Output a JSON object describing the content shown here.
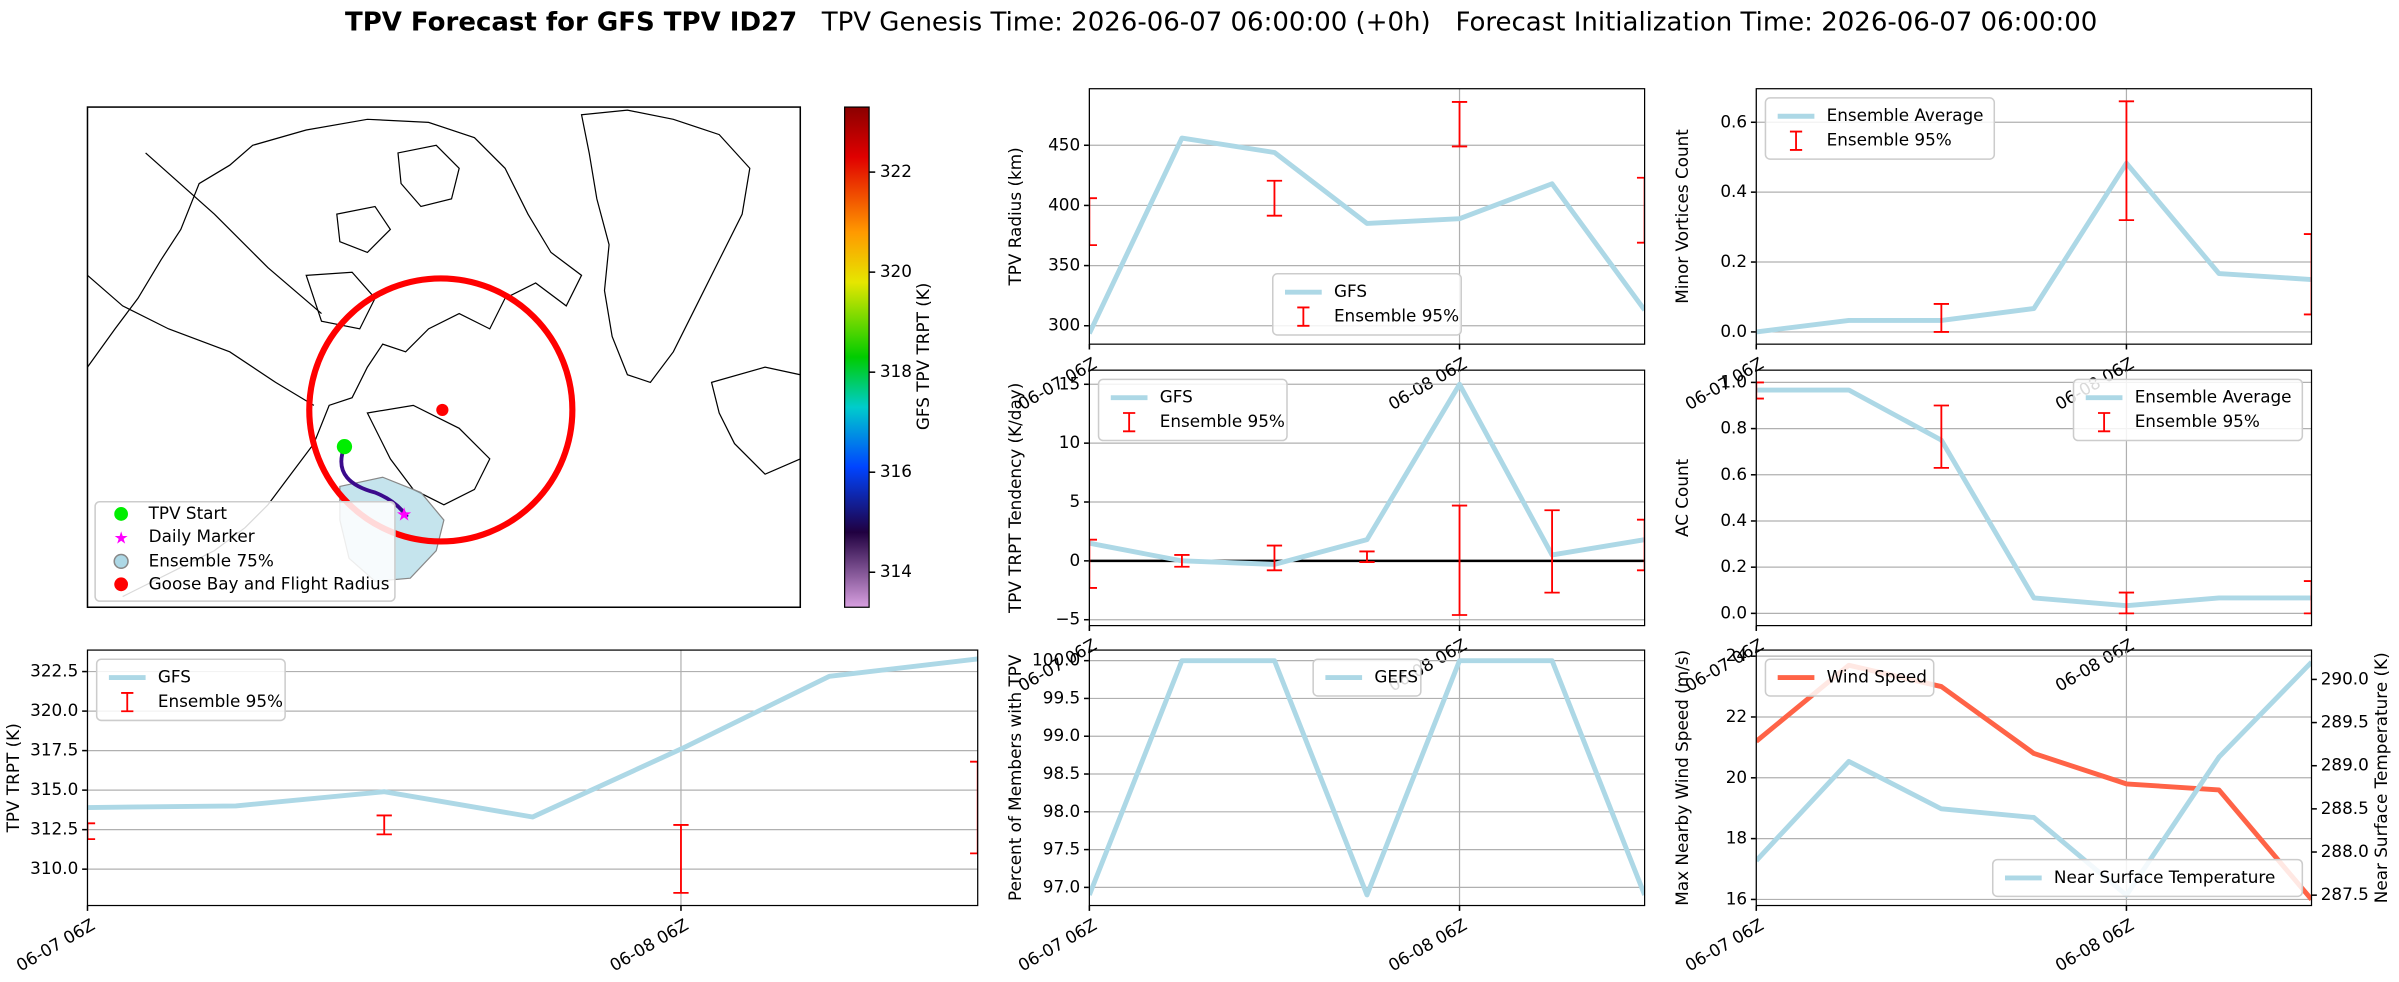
{
  "title": "TPV Forecast for GFS TPV ID27",
  "subtitle": "TPV Genesis Time: 2026-06-07 06:00:00 (+0h)   Forecast Initialization Time: 2026-06-07 06:00:00",
  "map": {
    "legend": [
      "TPV Start",
      "Daily Marker",
      "Ensemble 75%",
      "Goose Bay and Flight Radius"
    ],
    "colorbar": {
      "label": "GFS TPV TRPT (K)",
      "lim": [
        313.3,
        323.3
      ],
      "ticks": [
        314,
        316,
        318,
        320,
        322
      ]
    }
  },
  "chart_data": [
    {
      "type": "line",
      "ylabel": "TPV Radius (km)",
      "categories": [
        "06-07 06Z",
        null,
        null,
        null,
        "06-08 06Z",
        null,
        null
      ],
      "series": [
        {
          "name": "GFS",
          "color": "#add8e6",
          "values": [
            293.6,
            456,
            444,
            385,
            389,
            418,
            313
          ]
        },
        {
          "name": "Ensemble 95%",
          "color": "#ff0000",
          "values": [
            386.5,
            null,
            406,
            null,
            467.5,
            null,
            396
          ],
          "errors": [
            19.5,
            null,
            14.5,
            null,
            18.5,
            null,
            27
          ]
        }
      ],
      "ylim": [
        284.7,
        497
      ],
      "yticks": [
        300,
        350,
        400,
        450
      ],
      "grid": true,
      "legend": "lower center"
    },
    {
      "type": "line",
      "ylabel": "Minor Vortices Count",
      "categories": [
        "06-07 06Z",
        null,
        null,
        null,
        "06-08 06Z",
        null,
        null
      ],
      "series": [
        {
          "name": "Ensemble Average",
          "color": "#add8e6",
          "values": [
            0,
            0.033,
            0.033,
            0.067,
            0.483,
            0.167,
            0.15
          ]
        },
        {
          "name": "Ensemble 95%",
          "color": "#ff0000",
          "values": [
            null,
            null,
            0.04,
            null,
            0.49,
            null,
            0.165
          ],
          "errors": [
            null,
            null,
            0.04,
            null,
            0.17,
            null,
            0.115
          ]
        }
      ],
      "ylim": [
        -0.035,
        0.696
      ],
      "yticks": [
        {
          "value": 0,
          "label": "0.0"
        },
        0.2,
        0.4,
        0.6
      ],
      "grid": true,
      "legend": "upper left"
    },
    {
      "type": "line",
      "ylabel": "TPV TRPT Tendency (K/day)",
      "categories": [
        "06-07 06Z",
        null,
        null,
        null,
        "06-08 06Z",
        null,
        null
      ],
      "series": [
        {
          "name": "GFS",
          "color": "#add8e6",
          "values": [
            1.5,
            0,
            -0.3,
            1.8,
            15,
            0.5,
            1.8
          ]
        },
        {
          "name": "Ensemble 95%",
          "color": "#ff0000",
          "values": [
            -0.25,
            0,
            0.25,
            0.35,
            0.05,
            0.8,
            1.35
          ],
          "errors": [
            2.05,
            0.5,
            1.05,
            0.45,
            4.65,
            3.5,
            2.15
          ]
        }
      ],
      "ylim": [
        -5.5,
        16.2
      ],
      "yticks": [
        {
          "value": -5,
          "label": "−5"
        },
        0,
        5,
        10,
        15
      ],
      "grid": true,
      "legend": "upper left",
      "hline": 0
    },
    {
      "type": "line",
      "ylabel": "AC Count",
      "categories": [
        "06-07 06Z",
        null,
        null,
        null,
        "06-08 06Z",
        null,
        null
      ],
      "series": [
        {
          "name": "Ensemble Average",
          "color": "#add8e6",
          "values": [
            0.967,
            0.967,
            0.75,
            0.067,
            0.033,
            0.067,
            0.067
          ]
        },
        {
          "name": "Ensemble 95%",
          "color": "#ff0000",
          "values": [
            0.965,
            null,
            0.765,
            null,
            0.045,
            null,
            0.07
          ],
          "errors": [
            0.035,
            null,
            0.135,
            null,
            0.045,
            null,
            0.07
          ]
        }
      ],
      "ylim": [
        -0.053,
        1.053
      ],
      "yticks": [
        {
          "value": 0,
          "label": "0.0"
        },
        0.2,
        0.4,
        0.6,
        0.8,
        {
          "value": 1,
          "label": "1.0"
        }
      ],
      "grid": true,
      "legend": "upper right"
    },
    {
      "type": "line",
      "ylabel": "TPV TRPT (K)",
      "categories": [
        "06-07 06Z",
        null,
        null,
        null,
        "06-08 06Z",
        null,
        null
      ],
      "series": [
        {
          "name": "GFS",
          "color": "#add8e6",
          "values": [
            313.9,
            314.0,
            314.9,
            313.3,
            317.6,
            322.2,
            323.3
          ]
        },
        {
          "name": "Ensemble 95%",
          "color": "#ff0000",
          "values": [
            312.4,
            null,
            312.8,
            null,
            310.65,
            null,
            313.9
          ],
          "errors": [
            0.5,
            null,
            0.6,
            null,
            2.15,
            null,
            2.9
          ]
        }
      ],
      "ylim": [
        307.7,
        323.86
      ],
      "yticks": [
        {
          "value": 310,
          "label": "310.0"
        },
        312.5,
        {
          "value": 315,
          "label": "315.0"
        },
        317.5,
        {
          "value": 320,
          "label": "320.0"
        },
        322.5
      ],
      "grid": true,
      "legend": "upper left"
    },
    {
      "type": "line",
      "ylabel": "Percent of Members with TPV",
      "categories": [
        "06-07 06Z",
        null,
        null,
        null,
        "06-08 06Z",
        null,
        null
      ],
      "series": [
        {
          "name": "GEFS",
          "color": "#add8e6",
          "values": [
            96.9,
            100,
            100,
            96.9,
            100,
            100,
            96.9
          ]
        }
      ],
      "ylim": [
        96.76,
        100.14
      ],
      "yticks": [
        {
          "value": 97,
          "label": "97.0"
        },
        97.5,
        {
          "value": 98,
          "label": "98.0"
        },
        98.5,
        {
          "value": 99,
          "label": "99.0"
        },
        99.5,
        {
          "value": 100,
          "label": "100.0"
        }
      ],
      "grid": true,
      "legend": "upper center"
    },
    {
      "type": "line",
      "ylabel": "Max Nearby Wind Speed (m/s)",
      "y2label": "Near Surface Temperature (K)",
      "categories": [
        "06-07 06Z",
        null,
        null,
        null,
        "06-08 06Z",
        null,
        null
      ],
      "series": [
        {
          "name": "Wind Speed",
          "color": "#ff6347",
          "values": [
            21.2,
            23.7,
            23.0,
            20.8,
            19.8,
            19.6,
            16.0
          ]
        },
        {
          "name": "Near Surface Temperature",
          "color": "#add8e6",
          "axis": "y2",
          "values": [
            287.9,
            289.05,
            288.5,
            288.4,
            287.5,
            289.1,
            290.2
          ]
        }
      ],
      "ylim": [
        15.8,
        24.2
      ],
      "yticks": [
        16,
        18,
        20,
        22,
        24
      ],
      "y2lim": [
        287.38,
        290.34
      ],
      "y2ticks": [
        287.5,
        {
          "value": 288,
          "label": "288.0"
        },
        288.5,
        {
          "value": 289,
          "label": "289.0"
        },
        289.5,
        {
          "value": 290,
          "label": "290.0"
        }
      ],
      "y2color": "#4169e1",
      "grid": true,
      "legend": "upper left",
      "legend2": "lower right"
    }
  ]
}
